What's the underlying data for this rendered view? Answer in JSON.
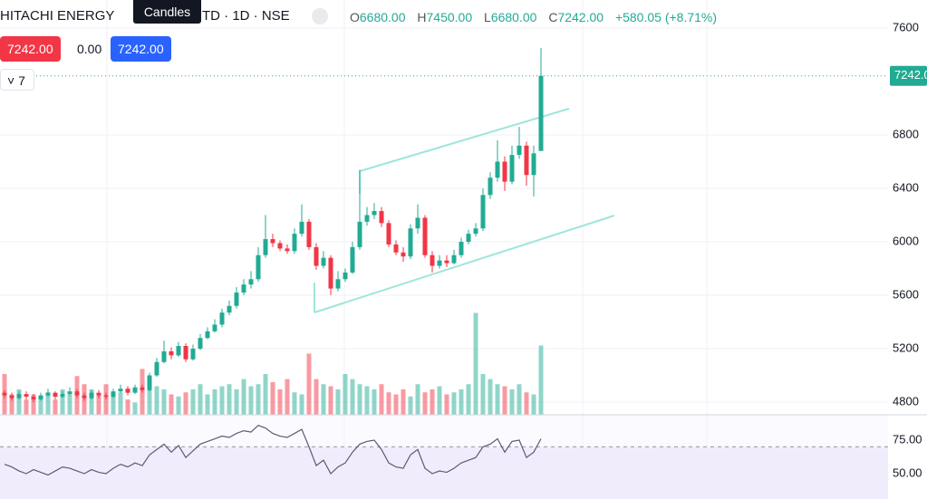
{
  "chart_data": {
    "type": "candlestick",
    "title_left": "HITACHI ENERGY",
    "title_right": "TD · 1D · NSE",
    "tooltip": "Candles",
    "legend": {
      "o": "O",
      "open": "6680.00",
      "h": "H",
      "high": "7450.00",
      "l": "L",
      "low": "6680.00",
      "c": "C",
      "close": "7242.00",
      "change": "+580.05 (+8.71%)"
    },
    "sell": "7242.00",
    "spread": "0.00",
    "buy": "7242.00",
    "indicator_count": "7",
    "price_tag": "7242.00",
    "up_color": "#22ab94",
    "down_color": "#f23645",
    "rsi_color": "#5d5a78",
    "ylim": [
      4705,
      7810
    ],
    "yticks": [
      4800,
      5200,
      5600,
      6000,
      6400,
      6800,
      7600
    ],
    "grid": true,
    "open": [
      4870,
      4850,
      4830,
      4860,
      4840,
      4820,
      4850,
      4870,
      4840,
      4860,
      4880,
      4850,
      4830,
      4870,
      4850,
      4840,
      4880,
      4900,
      4870,
      4910,
      4890,
      5000,
      5100,
      5180,
      5150,
      5220,
      5120,
      5200,
      5280,
      5330,
      5380,
      5470,
      5520,
      5620,
      5680,
      5720,
      5900,
      6020,
      5990,
      5950,
      5930,
      6060,
      6150,
      5960,
      5820,
      5880,
      5650,
      5720,
      5770,
      5960,
      6150,
      6200,
      6230,
      6140,
      5980,
      5920,
      5890,
      6100,
      6180,
      5900,
      5820,
      5860,
      5840,
      5900,
      6000,
      6060,
      6100,
      6350,
      6480,
      6600,
      6450,
      6650,
      6720,
      6500,
      6680
    ],
    "high": [
      4890,
      4870,
      4880,
      4880,
      4860,
      4870,
      4900,
      4880,
      4880,
      4910,
      4900,
      4870,
      4890,
      4890,
      4870,
      4900,
      4930,
      4920,
      4930,
      4930,
      5020,
      5130,
      5260,
      5210,
      5250,
      5240,
      5230,
      5310,
      5360,
      5420,
      5500,
      5560,
      5660,
      5720,
      5780,
      5960,
      6200,
      6060,
      6010,
      5980,
      6100,
      6280,
      6170,
      5990,
      5930,
      5900,
      5780,
      5800,
      6000,
      6540,
      6260,
      6290,
      6260,
      6160,
      6010,
      5960,
      6130,
      6280,
      6200,
      5930,
      5900,
      5900,
      5940,
      6030,
      6090,
      6140,
      6400,
      6520,
      6760,
      6640,
      6720,
      6860,
      6750,
      6720,
      7450
    ],
    "low": [
      4830,
      4810,
      4820,
      4820,
      4800,
      4810,
      4840,
      4820,
      4830,
      4850,
      4830,
      4810,
      4820,
      4830,
      4820,
      4830,
      4870,
      4850,
      4860,
      4870,
      4880,
      4990,
      5090,
      5120,
      5140,
      5100,
      5110,
      5190,
      5270,
      5320,
      5360,
      5450,
      5500,
      5600,
      5650,
      5700,
      5880,
      5960,
      5930,
      5910,
      5910,
      6040,
      5940,
      5790,
      5800,
      5600,
      5630,
      5700,
      5760,
      5940,
      6120,
      6170,
      6110,
      5960,
      5900,
      5850,
      5870,
      6060,
      5880,
      5770,
      5800,
      5810,
      5830,
      5880,
      5980,
      6040,
      6080,
      6320,
      6450,
      6380,
      6430,
      6620,
      6420,
      6340,
      6680
    ],
    "close": [
      4850,
      4830,
      4860,
      4840,
      4820,
      4850,
      4870,
      4840,
      4860,
      4880,
      4850,
      4830,
      4870,
      4850,
      4840,
      4880,
      4900,
      4870,
      4910,
      4890,
      5000,
      5100,
      5180,
      5150,
      5220,
      5120,
      5200,
      5280,
      5330,
      5380,
      5470,
      5520,
      5620,
      5680,
      5720,
      5900,
      6020,
      5990,
      5950,
      5930,
      6060,
      6150,
      5960,
      5820,
      5880,
      5650,
      5720,
      5770,
      5960,
      6150,
      6200,
      6230,
      6140,
      5980,
      5920,
      5890,
      6100,
      6180,
      5900,
      5820,
      5860,
      5840,
      5900,
      6000,
      6060,
      6100,
      6350,
      6480,
      6600,
      6450,
      6650,
      6720,
      6500,
      6662,
      7242
    ],
    "volume_lim": [
      0,
      120
    ],
    "volume": [
      40,
      20,
      25,
      15,
      20,
      18,
      22,
      15,
      25,
      20,
      38,
      30,
      25,
      20,
      30,
      18,
      22,
      15,
      12,
      45,
      30,
      28,
      25,
      20,
      18,
      22,
      25,
      30,
      20,
      25,
      28,
      30,
      25,
      35,
      28,
      30,
      40,
      32,
      25,
      35,
      22,
      20,
      60,
      35,
      30,
      28,
      25,
      40,
      35,
      30,
      28,
      25,
      30,
      22,
      20,
      25,
      18,
      30,
      22,
      25,
      28,
      20,
      22,
      25,
      30,
      100,
      40,
      35,
      30,
      28,
      25,
      30,
      22,
      20,
      68
    ],
    "rsi_ylim": [
      31.1,
      93.9
    ],
    "rsi_yticks": [
      {
        "value": 75,
        "label": "75.00"
      },
      {
        "value": 50,
        "label": "50.00"
      }
    ],
    "rsi_bands": [
      30,
      70
    ],
    "rsi": [
      57,
      55,
      52,
      50,
      53,
      51,
      49,
      52,
      55,
      54,
      52,
      50,
      53,
      51,
      50,
      54,
      57,
      55,
      58,
      56,
      64,
      68,
      72,
      66,
      71,
      62,
      67,
      72,
      74,
      76,
      78,
      77,
      80,
      82,
      81,
      86,
      84,
      80,
      78,
      77,
      80,
      83,
      70,
      56,
      60,
      50,
      55,
      58,
      66,
      72,
      74,
      75,
      68,
      58,
      55,
      54,
      64,
      68,
      54,
      50,
      52,
      51,
      54,
      58,
      60,
      62,
      70,
      72,
      76,
      66,
      74,
      75,
      62,
      66,
      76
    ]
  }
}
